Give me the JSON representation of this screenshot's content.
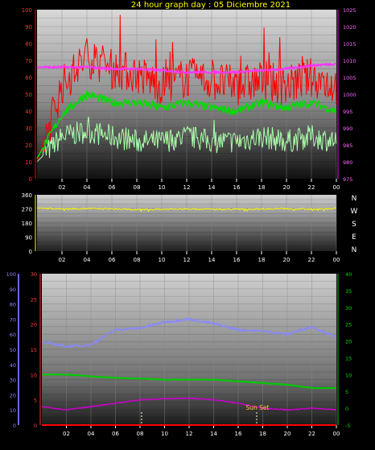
{
  "title": "24 hour graph day : 05 Diciembre 2021",
  "x_ticks": [
    "02",
    "04",
    "06",
    "08",
    "10",
    "12",
    "14",
    "16",
    "18",
    "20",
    "22",
    "00"
  ],
  "wind_compass": [
    "N",
    "W",
    "S",
    "E",
    "N"
  ],
  "annotations": {
    "sun_set": "Sun Set"
  },
  "colors": {
    "title": "#ffff00",
    "gust": "#ff0000",
    "avg_wind": "#00dd00",
    "wind_low": "#aaffaa",
    "pressure": "#ff33ff",
    "direction": "#ffff00",
    "humidity": "#8888ff",
    "temperature": "#00cc00",
    "dewpoint": "#cc00cc",
    "rain": "#ff0000"
  },
  "chart_data": [
    {
      "type": "line",
      "x": [
        "00:00",
        "02:00",
        "04:00",
        "06:00",
        "08:00",
        "10:00",
        "12:00",
        "14:00",
        "16:00",
        "18:00",
        "20:00",
        "22:00",
        "24:00"
      ],
      "y_left_ticks": [
        "0",
        "10",
        "20",
        "30",
        "40",
        "50",
        "60",
        "70",
        "80",
        "90",
        "100"
      ],
      "y_right_ticks": [
        "975",
        "980",
        "985",
        "990",
        "995",
        "1000",
        "1005",
        "1010",
        "1015",
        "1020",
        "1025"
      ],
      "ylim": [
        0,
        100
      ],
      "y2lim": [
        975,
        1025
      ],
      "series": [
        {
          "color": "gust",
          "axis": "left",
          "values": [
            10,
            55,
            72,
            65,
            62,
            55,
            60,
            58,
            55,
            58,
            55,
            60,
            55
          ]
        },
        {
          "color": "avg_wind",
          "axis": "left",
          "values": [
            12,
            38,
            50,
            45,
            45,
            42,
            45,
            42,
            40,
            45,
            42,
            45,
            40
          ]
        },
        {
          "color": "wind_low",
          "axis": "left",
          "values": [
            10,
            25,
            28,
            25,
            22,
            22,
            25,
            22,
            22,
            25,
            22,
            25,
            22
          ]
        },
        {
          "color": "pressure",
          "axis": "right",
          "values": [
            1008,
            1008,
            1008,
            1007.5,
            1007.5,
            1007,
            1006.5,
            1006.5,
            1006.5,
            1007,
            1007.5,
            1008.5,
            1009
          ]
        }
      ]
    },
    {
      "type": "line",
      "x": [
        "00:00",
        "02:00",
        "04:00",
        "06:00",
        "08:00",
        "10:00",
        "12:00",
        "14:00",
        "16:00",
        "18:00",
        "20:00",
        "22:00",
        "24:00"
      ],
      "y_left_ticks": [
        "0",
        "90",
        "180",
        "270",
        "360"
      ],
      "ylim": [
        0,
        360
      ],
      "series": [
        {
          "color": "direction",
          "axis": "left",
          "values": [
            275,
            270,
            272,
            270,
            265,
            268,
            270,
            268,
            268,
            270,
            272,
            268,
            272
          ]
        }
      ]
    },
    {
      "type": "line",
      "x": [
        "00:00",
        "02:00",
        "04:00",
        "06:00",
        "08:00",
        "10:00",
        "12:00",
        "14:00",
        "16:00",
        "18:00",
        "20:00",
        "22:00",
        "24:00"
      ],
      "y_left_ticks": [
        "0",
        "10",
        "20",
        "30",
        "40",
        "50",
        "60",
        "70",
        "80",
        "90",
        "100"
      ],
      "y_mid_ticks": [
        "0",
        "5",
        "10",
        "15",
        "20",
        "25",
        "30"
      ],
      "y_right_ticks": [
        "-5",
        "0",
        "5",
        "10",
        "15",
        "20",
        "25",
        "30",
        "35",
        "40"
      ],
      "ylim": [
        0,
        100
      ],
      "ymidlim": [
        0,
        30
      ],
      "y2lim": [
        -5,
        40
      ],
      "series": [
        {
          "color": "humidity",
          "axis": "left",
          "values": [
            55,
            52,
            53,
            63,
            64,
            68,
            70,
            67,
            63,
            62,
            60,
            65,
            58
          ]
        },
        {
          "color": "temperature",
          "axis": "right",
          "values": [
            10,
            10,
            9.5,
            9,
            8.8,
            8.5,
            8.5,
            8.5,
            8,
            7.5,
            7,
            6,
            6
          ]
        },
        {
          "color": "dewpoint",
          "axis": "right",
          "values": [
            0.5,
            -0.5,
            0.5,
            1.5,
            2.5,
            2.8,
            3,
            2.5,
            1.5,
            0,
            -0.5,
            0,
            -0.5
          ]
        },
        {
          "color": "rain",
          "axis": "mid",
          "values": [
            0,
            0,
            0,
            0,
            0,
            0,
            0,
            0,
            0,
            0,
            0,
            0,
            0
          ]
        }
      ]
    }
  ]
}
